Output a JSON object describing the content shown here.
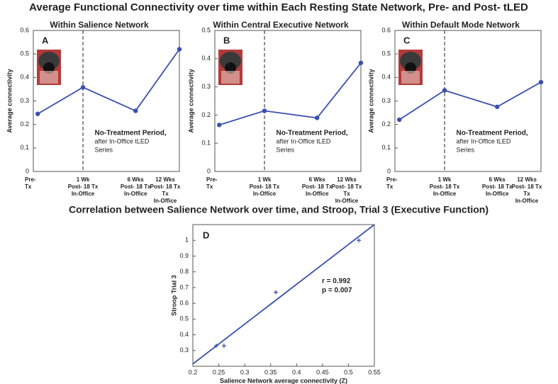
{
  "title": "Average Functional Connectivity over time within Each Resting State Network, Pre- and Post- tLED",
  "chart_data": [
    {
      "type": "line",
      "panel_label": "A",
      "title": "Within Salience Network",
      "ylabel": "Average connectivity",
      "categories": [
        [
          "Pre-",
          "Tx"
        ],
        [
          "1 Wk",
          "Post- 18 Tx",
          "In-Office"
        ],
        [
          "6 Wks",
          "Post- 18 Tx",
          "In-Office"
        ],
        [
          "12 Wks",
          "Post- 18 Tx",
          "Tx",
          "In-Office"
        ]
      ],
      "values": [
        0.245,
        0.358,
        0.258,
        0.52
      ],
      "color": "#3a4fb0",
      "ylim": [
        0,
        0.6
      ],
      "yticks": [
        0,
        0.1,
        0.2,
        0.3,
        0.4,
        0.5,
        0.6
      ],
      "annotation": [
        "No-Treatment Period,",
        "after In-Office tLED",
        "Series"
      ]
    },
    {
      "type": "line",
      "panel_label": "B",
      "title": "Within Central Executive Network",
      "ylabel": "Average connectivity",
      "categories": [
        [
          "Pre-",
          "Tx"
        ],
        [
          "1 Wk",
          "Post- 18 Tx",
          "In-Office"
        ],
        [
          "6 Wks",
          "Post- 18 Tx",
          "In-Office"
        ],
        [
          "12 Wks",
          "Post- 18 Tx",
          "Tx",
          "In-Office"
        ]
      ],
      "values": [
        0.165,
        0.215,
        0.19,
        0.385
      ],
      "color": "#3a4fb0",
      "ylim": [
        0,
        0.5
      ],
      "yticks": [
        0,
        0.1,
        0.2,
        0.3,
        0.4,
        0.5
      ],
      "annotation": [
        "No-Treatment Period,",
        "after In-Office tLED",
        "Series"
      ]
    },
    {
      "type": "line",
      "panel_label": "C",
      "title": "Within Default Mode Network",
      "ylabel": "Average connectivity",
      "categories": [
        [
          "Pre-",
          "Tx"
        ],
        [
          "1 Wk",
          "Post- 18 Tx",
          "In-Office"
        ],
        [
          "6 Wks",
          "Post- 18 Tx",
          "In-Office"
        ],
        [
          "12 Wks",
          "Post- 18 Tx",
          "Tx",
          "In-Office"
        ]
      ],
      "values": [
        0.22,
        0.345,
        0.275,
        0.38
      ],
      "color": "#3a4fb0",
      "ylim": [
        0,
        0.6
      ],
      "yticks": [
        0,
        0.1,
        0.2,
        0.3,
        0.4,
        0.5,
        0.6
      ],
      "annotation": [
        "No-Treatment Period,",
        "after In-Office tLED",
        "Series"
      ]
    },
    {
      "type": "scatter",
      "panel_label": "D",
      "title": "Correlation between Salience Network over time, and Stroop, Trial 3 (Executive Function)",
      "xlabel": "Salience Network average connectivity (Z)",
      "ylabel": "Stroop Trial 3",
      "x": [
        0.245,
        0.26,
        0.36,
        0.52
      ],
      "values": [
        0.33,
        0.33,
        0.67,
        1.0
      ],
      "color": "#3a4fb0",
      "trend_line": {
        "x": [
          0.2,
          0.55
        ],
        "y": [
          0.215,
          1.1
        ]
      },
      "xlim": [
        0.2,
        0.55
      ],
      "xticks": [
        0.2,
        0.25,
        0.3,
        0.35,
        0.4,
        0.45,
        0.5,
        0.55
      ],
      "ylim": [
        0.2,
        1.1
      ],
      "yticks": [
        0.3,
        0.4,
        0.5,
        0.6,
        0.7,
        0.8,
        0.9,
        1
      ],
      "annotation": [
        "r = 0.992",
        "p = 0.007"
      ]
    }
  ]
}
